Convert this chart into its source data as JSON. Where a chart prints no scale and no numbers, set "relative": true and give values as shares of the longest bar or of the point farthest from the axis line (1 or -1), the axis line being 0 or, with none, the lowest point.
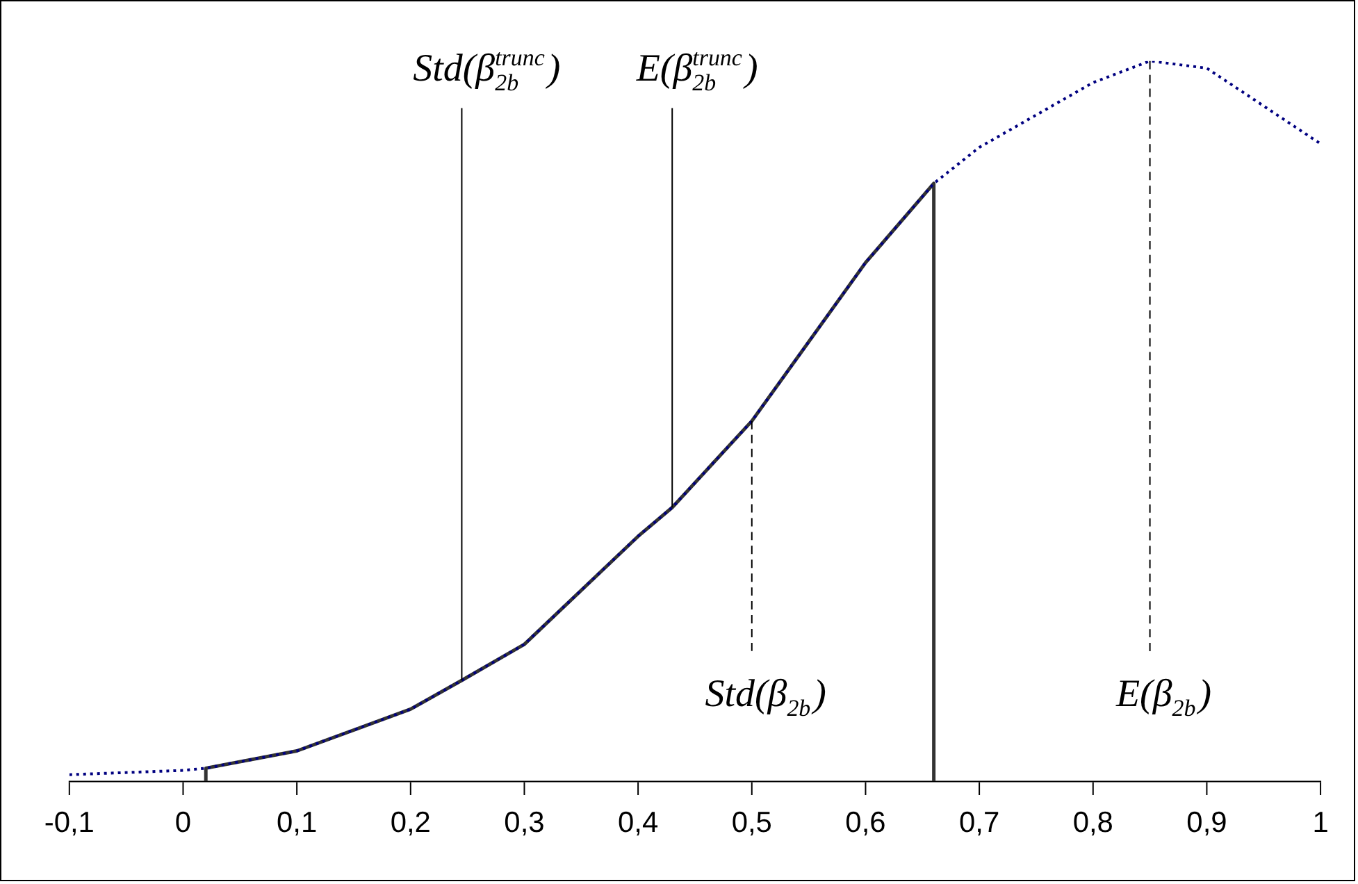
{
  "chart_data": {
    "type": "line",
    "relative": true,
    "legend": false,
    "grid": false,
    "marker": "none",
    "xlim": [
      -0.1,
      1
    ],
    "xticks": [
      {
        "value": -0.1,
        "label": "-0,1"
      },
      0,
      {
        "value": 0.1,
        "label": "0,1"
      },
      {
        "value": 0.2,
        "label": "0,2"
      },
      {
        "value": 0.3,
        "label": "0,3"
      },
      {
        "value": 0.4,
        "label": "0,4"
      },
      {
        "value": 0.5,
        "label": "0,5"
      },
      {
        "value": 0.6,
        "label": "0,6"
      },
      {
        "value": 0.7,
        "label": "0,7"
      },
      {
        "value": 0.8,
        "label": "0,8"
      },
      {
        "value": 0.9,
        "label": "0,9"
      },
      1
    ],
    "series": [
      {
        "color": "#000080",
        "line_style": "dotted",
        "x": [
          -0.1,
          0,
          0.02,
          0.1,
          0.2,
          0.245,
          0.3,
          0.4,
          0.43,
          0.5,
          0.6,
          0.66,
          0.7,
          0.8,
          0.85,
          0.9,
          1
        ],
        "values": [
          0.009,
          0.015,
          0.018,
          0.042,
          0.1,
          0.14,
          0.19,
          0.34,
          0.38,
          0.5,
          0.72,
          0.83,
          0.88,
          0.97,
          1,
          0.99,
          0.885
        ]
      },
      {
        "color": "#333333",
        "line_style": "solid",
        "x": [
          0.02,
          0.02,
          0.1,
          0.2,
          0.245,
          0.3,
          0.4,
          0.43,
          0.5,
          0.6,
          0.66,
          0.66
        ],
        "values": [
          0,
          0.018,
          0.042,
          0.1,
          0.14,
          0.19,
          0.34,
          0.38,
          0.5,
          0.72,
          0.83,
          0
        ]
      }
    ],
    "ref_lines": [
      {
        "axis": "x",
        "value": 0.245,
        "label": "Std(β$_{2b}$$^{trunc}$)",
        "line_style": "solid"
      },
      {
        "axis": "x",
        "value": 0.43,
        "label": "E(β$_{2b}$$^{trunc}$)",
        "line_style": "solid"
      },
      {
        "axis": "x",
        "value": 0.5,
        "label": "Std(β$_{2b}$)",
        "line_style": "dashed"
      },
      {
        "axis": "x",
        "value": 0.85,
        "label": "E(β$_{2b}$)",
        "line_style": "dashed"
      }
    ]
  }
}
